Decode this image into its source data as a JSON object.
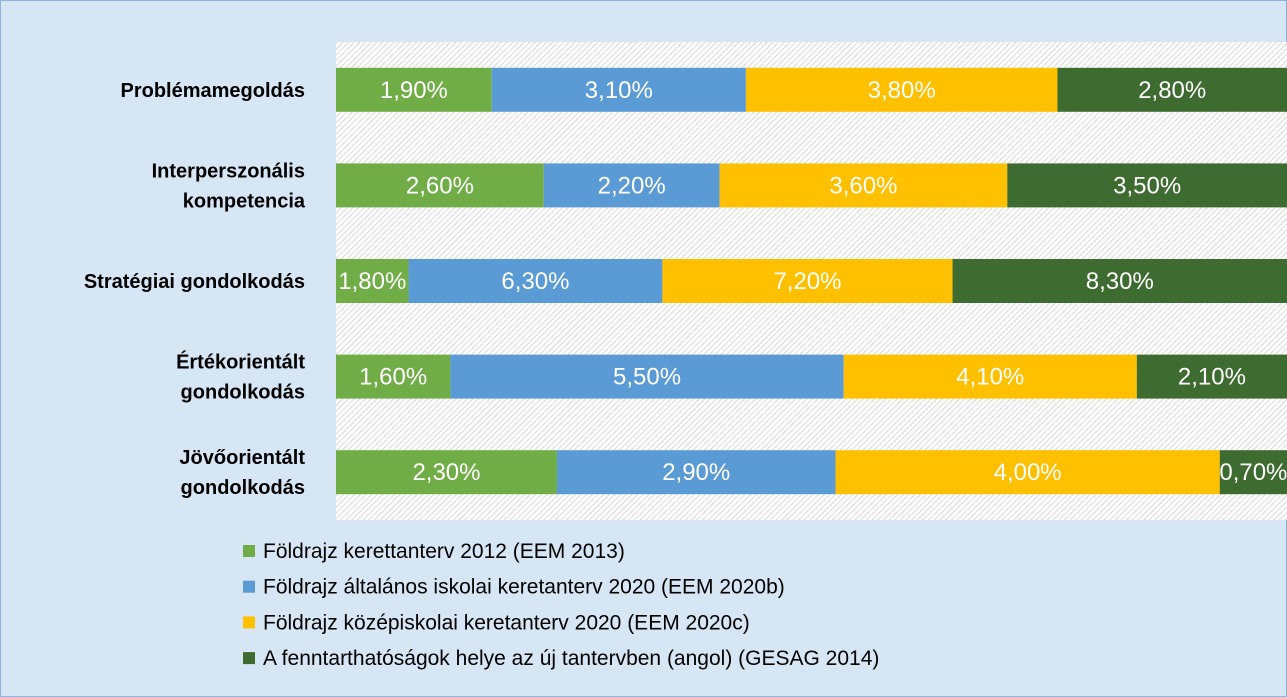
{
  "chart_data": {
    "type": "bar",
    "orientation": "horizontal",
    "stack": "percent",
    "categories": [
      "Problémamegoldás",
      "Interperszonális\nkompetencia",
      "Stratégiai gondolkodás",
      "Értékorientált\ngondolkodás",
      "Jövőorientált\ngondolkodás"
    ],
    "series": [
      {
        "name": "Földrajz kerettanterv 2012 (EEM 2013)",
        "color": "#70ad47",
        "values": [
          1.9,
          2.6,
          1.8,
          1.6,
          2.3
        ],
        "value_labels": [
          "1,90%",
          "2,60%",
          "1,80%",
          "1,60%",
          "2,30%"
        ]
      },
      {
        "name": "Földrajz általános iskolai keretanterv 2020 (EEM 2020b)",
        "color": "#5b9bd5",
        "values": [
          3.1,
          2.2,
          6.3,
          5.5,
          2.9
        ],
        "value_labels": [
          "3,10%",
          "2,20%",
          "6,30%",
          "5,50%",
          "2,90%"
        ]
      },
      {
        "name": "Földrajz középiskolai keretanterv 2020 (EEM 2020c)",
        "color": "#ffc000",
        "values": [
          3.8,
          3.6,
          7.2,
          4.1,
          4.0
        ],
        "value_labels": [
          "3,80%",
          "3,60%",
          "7,20%",
          "4,10%",
          "4,00%"
        ]
      },
      {
        "name": "A fenntarthatóságok helye az új tantervben (angol) (GESAG 2014)",
        "color": "#3e6b2f",
        "values": [
          2.8,
          3.5,
          8.3,
          2.1,
          0.7
        ],
        "value_labels": [
          "2,80%",
          "3,50%",
          "8,30%",
          "2,10%",
          "0,70%"
        ]
      }
    ]
  }
}
